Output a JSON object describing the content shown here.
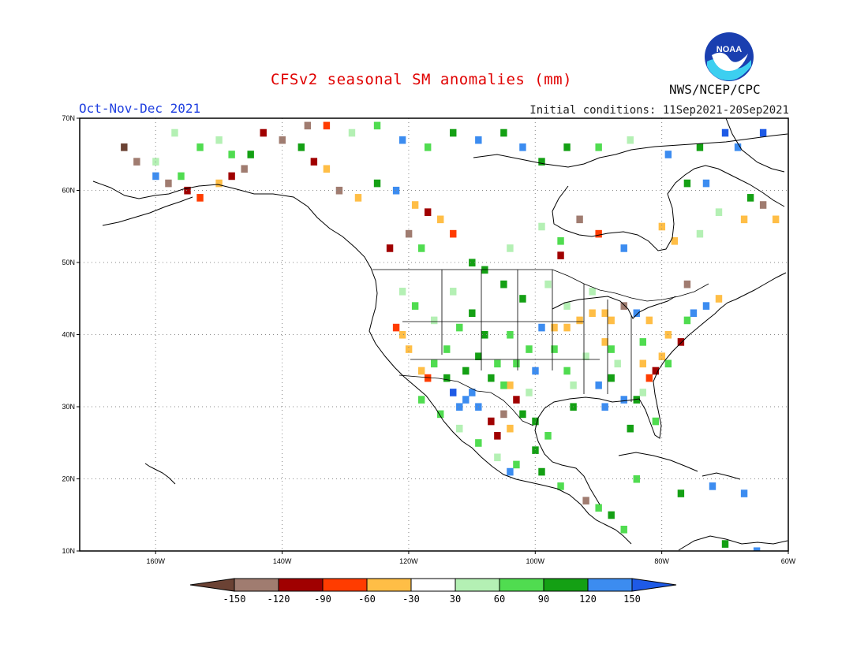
{
  "header": {
    "title": "CFSv2 seasonal SM anomalies (mm)",
    "season": "Oct-Nov-Dec 2021",
    "initial_conditions": "Initial conditions: 11Sep2021-20Sep2021",
    "agency": "NWS/NCEP/CPC",
    "logo_text": "NOAA"
  },
  "map": {
    "lon_range": [
      -172,
      -60
    ],
    "lat_range": [
      10,
      70
    ],
    "lat_labels": [
      "70N",
      "60N",
      "50N",
      "40N",
      "30N",
      "20N",
      "10N"
    ],
    "lon_labels": [
      "160W",
      "140W",
      "120W",
      "100W",
      "80W",
      "60W"
    ],
    "gridlines": "dotted",
    "coastline_color": "#000000"
  },
  "colorbar": {
    "tick_labels": [
      "-150",
      "-120",
      "-90",
      "-60",
      "-30",
      "30",
      "60",
      "90",
      "120",
      "150"
    ],
    "colors": [
      "#6b4234",
      "#a07c70",
      "#a00000",
      "#ff3c00",
      "#ffbe46",
      "#ffffff",
      "#b4f0b4",
      "#50dc50",
      "#14a014",
      "#3c8cf0",
      "#1e5ae6"
    ]
  },
  "anomaly_cells": [
    {
      "lon": -122,
      "lat": 41,
      "c": 3
    },
    {
      "lon": -121,
      "lat": 40,
      "c": 4
    },
    {
      "lon": -120,
      "lat": 38,
      "c": 4
    },
    {
      "lon": -118,
      "lat": 35,
      "c": 4
    },
    {
      "lon": -117,
      "lat": 34,
      "c": 3
    },
    {
      "lon": -113,
      "lat": 32,
      "c": 10
    },
    {
      "lon": -111,
      "lat": 31,
      "c": 9
    },
    {
      "lon": -110,
      "lat": 32,
      "c": 9
    },
    {
      "lon": -112,
      "lat": 30,
      "c": 9
    },
    {
      "lon": -109,
      "lat": 30,
      "c": 9
    },
    {
      "lon": -107,
      "lat": 28,
      "c": 2
    },
    {
      "lon": -106,
      "lat": 26,
      "c": 2
    },
    {
      "lon": -104,
      "lat": 33,
      "c": 4
    },
    {
      "lon": -103,
      "lat": 31,
      "c": 2
    },
    {
      "lon": -105,
      "lat": 29,
      "c": 1
    },
    {
      "lon": -104,
      "lat": 27,
      "c": 4
    },
    {
      "lon": -102,
      "lat": 29,
      "c": 8
    },
    {
      "lon": -100,
      "lat": 35,
      "c": 9
    },
    {
      "lon": -99,
      "lat": 41,
      "c": 9
    },
    {
      "lon": -97,
      "lat": 41,
      "c": 4
    },
    {
      "lon": -95,
      "lat": 41,
      "c": 4
    },
    {
      "lon": -93,
      "lat": 42,
      "c": 4
    },
    {
      "lon": -91,
      "lat": 43,
      "c": 4
    },
    {
      "lon": -89,
      "lat": 43,
      "c": 4
    },
    {
      "lon": -88,
      "lat": 42,
      "c": 4
    },
    {
      "lon": -89,
      "lat": 39,
      "c": 4
    },
    {
      "lon": -86,
      "lat": 44,
      "c": 1
    },
    {
      "lon": -84,
      "lat": 43,
      "c": 9
    },
    {
      "lon": -82,
      "lat": 42,
      "c": 4
    },
    {
      "lon": -79,
      "lat": 40,
      "c": 4
    },
    {
      "lon": -77,
      "lat": 39,
      "c": 2
    },
    {
      "lon": -80,
      "lat": 37,
      "c": 4
    },
    {
      "lon": -81,
      "lat": 35,
      "c": 2
    },
    {
      "lon": -82,
      "lat": 34,
      "c": 3
    },
    {
      "lon": -83,
      "lat": 36,
      "c": 4
    },
    {
      "lon": -75,
      "lat": 43,
      "c": 9
    },
    {
      "lon": -73,
      "lat": 44,
      "c": 9
    },
    {
      "lon": -71,
      "lat": 45,
      "c": 4
    },
    {
      "lon": -76,
      "lat": 47,
      "c": 1
    },
    {
      "lon": -89,
      "lat": 30,
      "c": 9
    },
    {
      "lon": -90,
      "lat": 33,
      "c": 9
    },
    {
      "lon": -86,
      "lat": 31,
      "c": 9
    },
    {
      "lon": -84,
      "lat": 31,
      "c": 8
    },
    {
      "lon": -88,
      "lat": 34,
      "c": 8
    },
    {
      "lon": -94,
      "lat": 30,
      "c": 8
    },
    {
      "lon": -85,
      "lat": 27,
      "c": 8
    },
    {
      "lon": -81,
      "lat": 28,
      "c": 7
    },
    {
      "lon": -95,
      "lat": 35,
      "c": 7
    },
    {
      "lon": -97,
      "lat": 38,
      "c": 7
    },
    {
      "lon": -102,
      "lat": 45,
      "c": 8
    },
    {
      "lon": -105,
      "lat": 47,
      "c": 8
    },
    {
      "lon": -108,
      "lat": 49,
      "c": 8
    },
    {
      "lon": -110,
      "lat": 43,
      "c": 8
    },
    {
      "lon": -112,
      "lat": 41,
      "c": 7
    },
    {
      "lon": -114,
      "lat": 38,
      "c": 7
    },
    {
      "lon": -116,
      "lat": 36,
      "c": 7
    },
    {
      "lon": -119,
      "lat": 44,
      "c": 7
    },
    {
      "lon": -121,
      "lat": 46,
      "c": 6
    },
    {
      "lon": -109,
      "lat": 37,
      "c": 8
    },
    {
      "lon": -106,
      "lat": 36,
      "c": 7
    },
    {
      "lon": -107,
      "lat": 34,
      "c": 8
    },
    {
      "lon": -105,
      "lat": 33,
      "c": 7
    },
    {
      "lon": -103,
      "lat": 36,
      "c": 7
    },
    {
      "lon": -100,
      "lat": 28,
      "c": 8
    },
    {
      "lon": -98,
      "lat": 26,
      "c": 7
    },
    {
      "lon": -100,
      "lat": 24,
      "c": 8
    },
    {
      "lon": -103,
      "lat": 22,
      "c": 7
    },
    {
      "lon": -104,
      "lat": 21,
      "c": 9
    },
    {
      "lon": -99,
      "lat": 21,
      "c": 8
    },
    {
      "lon": -96,
      "lat": 19,
      "c": 7
    },
    {
      "lon": -92,
      "lat": 17,
      "c": 1
    },
    {
      "lon": -90,
      "lat": 16,
      "c": 7
    },
    {
      "lon": -88,
      "lat": 15,
      "c": 8
    },
    {
      "lon": -86,
      "lat": 13,
      "c": 7
    },
    {
      "lon": -84,
      "lat": 20,
      "c": 7
    },
    {
      "lon": -77,
      "lat": 18,
      "c": 8
    },
    {
      "lon": -72,
      "lat": 19,
      "c": 9
    },
    {
      "lon": -67,
      "lat": 18,
      "c": 9
    },
    {
      "lon": -70,
      "lat": 11,
      "c": 8
    },
    {
      "lon": -65,
      "lat": 10,
      "c": 9
    },
    {
      "lon": -163,
      "lat": 64,
      "c": 1
    },
    {
      "lon": -160,
      "lat": 62,
      "c": 9
    },
    {
      "lon": -158,
      "lat": 61,
      "c": 1
    },
    {
      "lon": -155,
      "lat": 60,
      "c": 2
    },
    {
      "lon": -153,
      "lat": 59,
      "c": 3
    },
    {
      "lon": -150,
      "lat": 61,
      "c": 4
    },
    {
      "lon": -148,
      "lat": 62,
      "c": 2
    },
    {
      "lon": -146,
      "lat": 63,
      "c": 1
    },
    {
      "lon": -145,
      "lat": 65,
      "c": 8
    },
    {
      "lon": -143,
      "lat": 68,
      "c": 2
    },
    {
      "lon": -140,
      "lat": 67,
      "c": 1
    },
    {
      "lon": -137,
      "lat": 66,
      "c": 8
    },
    {
      "lon": -135,
      "lat": 64,
      "c": 2
    },
    {
      "lon": -133,
      "lat": 63,
      "c": 4
    },
    {
      "lon": -131,
      "lat": 60,
      "c": 1
    },
    {
      "lon": -128,
      "lat": 59,
      "c": 4
    },
    {
      "lon": -125,
      "lat": 61,
      "c": 8
    },
    {
      "lon": -122,
      "lat": 60,
      "c": 9
    },
    {
      "lon": -119,
      "lat": 58,
      "c": 4
    },
    {
      "lon": -117,
      "lat": 57,
      "c": 2
    },
    {
      "lon": -115,
      "lat": 56,
      "c": 4
    },
    {
      "lon": -113,
      "lat": 54,
      "c": 3
    },
    {
      "lon": -120,
      "lat": 54,
      "c": 1
    },
    {
      "lon": -123,
      "lat": 52,
      "c": 2
    },
    {
      "lon": -118,
      "lat": 52,
      "c": 7
    },
    {
      "lon": -110,
      "lat": 50,
      "c": 8
    },
    {
      "lon": -104,
      "lat": 52,
      "c": 6
    },
    {
      "lon": -99,
      "lat": 55,
      "c": 6
    },
    {
      "lon": -96,
      "lat": 53,
      "c": 7
    },
    {
      "lon": -93,
      "lat": 56,
      "c": 1
    },
    {
      "lon": -90,
      "lat": 54,
      "c": 3
    },
    {
      "lon": -96,
      "lat": 51,
      "c": 2
    },
    {
      "lon": -86,
      "lat": 52,
      "c": 9
    },
    {
      "lon": -80,
      "lat": 55,
      "c": 4
    },
    {
      "lon": -78,
      "lat": 53,
      "c": 4
    },
    {
      "lon": -74,
      "lat": 54,
      "c": 6
    },
    {
      "lon": -71,
      "lat": 57,
      "c": 6
    },
    {
      "lon": -67,
      "lat": 56,
      "c": 4
    },
    {
      "lon": -64,
      "lat": 58,
      "c": 1
    },
    {
      "lon": -62,
      "lat": 56,
      "c": 4
    },
    {
      "lon": -66,
      "lat": 59,
      "c": 8
    },
    {
      "lon": -73,
      "lat": 61,
      "c": 9
    },
    {
      "lon": -76,
      "lat": 61,
      "c": 8
    },
    {
      "lon": -79,
      "lat": 65,
      "c": 9
    },
    {
      "lon": -74,
      "lat": 66,
      "c": 8
    },
    {
      "lon": -70,
      "lat": 68,
      "c": 10
    },
    {
      "lon": -68,
      "lat": 66,
      "c": 9
    },
    {
      "lon": -64,
      "lat": 68,
      "c": 10
    },
    {
      "lon": -85,
      "lat": 67,
      "c": 6
    },
    {
      "lon": -90,
      "lat": 66,
      "c": 7
    },
    {
      "lon": -95,
      "lat": 66,
      "c": 8
    },
    {
      "lon": -99,
      "lat": 64,
      "c": 8
    },
    {
      "lon": -102,
      "lat": 66,
      "c": 9
    },
    {
      "lon": -105,
      "lat": 68,
      "c": 8
    },
    {
      "lon": -109,
      "lat": 67,
      "c": 9
    },
    {
      "lon": -113,
      "lat": 68,
      "c": 8
    },
    {
      "lon": -117,
      "lat": 66,
      "c": 7
    },
    {
      "lon": -121,
      "lat": 67,
      "c": 9
    },
    {
      "lon": -125,
      "lat": 69,
      "c": 7
    },
    {
      "lon": -129,
      "lat": 68,
      "c": 6
    },
    {
      "lon": -133,
      "lat": 69,
      "c": 3
    },
    {
      "lon": -136,
      "lat": 69,
      "c": 1
    },
    {
      "lon": -157,
      "lat": 68,
      "c": 6
    },
    {
      "lon": -153,
      "lat": 66,
      "c": 7
    },
    {
      "lon": -150,
      "lat": 67,
      "c": 6
    },
    {
      "lon": -148,
      "lat": 65,
      "c": 7
    },
    {
      "lon": -165,
      "lat": 66,
      "c": 0
    },
    {
      "lon": -160,
      "lat": 64,
      "c": 6
    },
    {
      "lon": -156,
      "lat": 62,
      "c": 7
    },
    {
      "lon": -95,
      "lat": 44,
      "c": 6
    },
    {
      "lon": -91,
      "lat": 46,
      "c": 6
    },
    {
      "lon": -98,
      "lat": 47,
      "c": 6
    },
    {
      "lon": -113,
      "lat": 46,
      "c": 6
    },
    {
      "lon": -116,
      "lat": 42,
      "c": 6
    },
    {
      "lon": -92,
      "lat": 37,
      "c": 6
    },
    {
      "lon": -87,
      "lat": 36,
      "c": 6
    },
    {
      "lon": -83,
      "lat": 32,
      "c": 6
    },
    {
      "lon": -94,
      "lat": 33,
      "c": 6
    },
    {
      "lon": -101,
      "lat": 32,
      "c": 6
    },
    {
      "lon": -118,
      "lat": 31,
      "c": 7
    },
    {
      "lon": -115,
      "lat": 29,
      "c": 7
    },
    {
      "lon": -112,
      "lat": 27,
      "c": 6
    },
    {
      "lon": -109,
      "lat": 25,
      "c": 7
    },
    {
      "lon": -106,
      "lat": 23,
      "c": 6
    },
    {
      "lon": -111,
      "lat": 35,
      "c": 8
    },
    {
      "lon": -114,
      "lat": 34,
      "c": 8
    },
    {
      "lon": -108,
      "lat": 40,
      "c": 8
    },
    {
      "lon": -104,
      "lat": 40,
      "c": 7
    },
    {
      "lon": -101,
      "lat": 38,
      "c": 7
    },
    {
      "lon": -88,
      "lat": 38,
      "c": 7
    },
    {
      "lon": -83,
      "lat": 39,
      "c": 7
    },
    {
      "lon": -79,
      "lat": 36,
      "c": 7
    },
    {
      "lon": -76,
      "lat": 42,
      "c": 7
    }
  ]
}
